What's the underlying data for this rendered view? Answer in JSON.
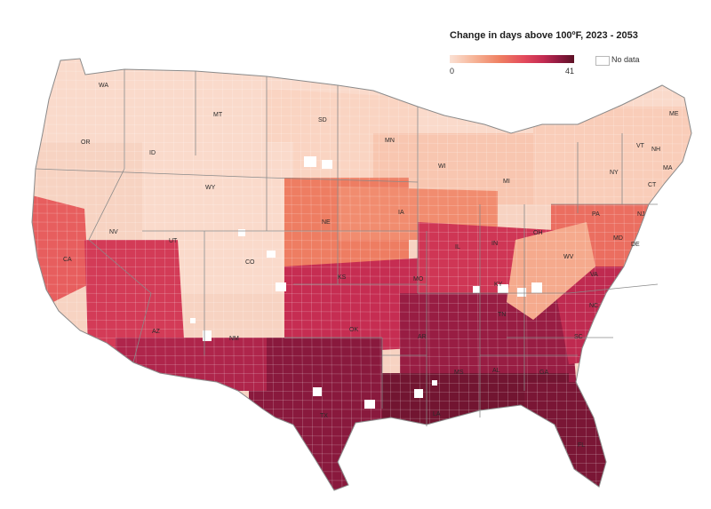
{
  "legend": {
    "title": "Change in days above 100ºF, 2023 - 2053",
    "min_label": "0",
    "max_label": "41",
    "no_data_label": "No data",
    "scale": {
      "min": 0,
      "max": 41
    },
    "color_ramp": [
      "#fbe1d4",
      "#f6b396",
      "#ef8062",
      "#e34a5c",
      "#c42c52",
      "#8f1a40",
      "#5c1125"
    ],
    "no_data_color": "#ffffff"
  },
  "colors": {
    "land_base": "#f7d3c2",
    "state_border": "#8a8a8a",
    "water": "#ffffff"
  },
  "state_labels": [
    "WA",
    "MT",
    "OR",
    "ID",
    "SD",
    "MN",
    "WY",
    "WI",
    "NE",
    "IA",
    "NV",
    "UT",
    "CO",
    "CA",
    "KS",
    "MO",
    "IL",
    "IN",
    "OH",
    "MI",
    "PA",
    "NY",
    "VT",
    "NH",
    "ME",
    "MA",
    "CT",
    "NJ",
    "DE",
    "MD",
    "WV",
    "VA",
    "KY",
    "TN",
    "NC",
    "SC",
    "AZ",
    "NM",
    "OK",
    "AR",
    "MS",
    "AL",
    "GA",
    "TX",
    "LA",
    "FL"
  ],
  "regions": [
    {
      "name": "northwest",
      "value": 1
    },
    {
      "name": "northern-plains",
      "value": 2
    },
    {
      "name": "rockies",
      "value": 1
    },
    {
      "name": "great-lakes",
      "value": 4
    },
    {
      "name": "northeast",
      "value": 3
    },
    {
      "name": "central-plains",
      "value": 14
    },
    {
      "name": "corn-belt",
      "value": 12
    },
    {
      "name": "mid-atlantic",
      "value": 16
    },
    {
      "name": "central-valley-ca",
      "value": 18
    },
    {
      "name": "nevada-arizona-desert",
      "value": 24
    },
    {
      "name": "southern-plains",
      "value": 27
    },
    {
      "name": "ohio-valley",
      "value": 25
    },
    {
      "name": "deep-south",
      "value": 33
    },
    {
      "name": "gulf-coast",
      "value": 38
    },
    {
      "name": "texas",
      "value": 35
    },
    {
      "name": "florida",
      "value": 37
    },
    {
      "name": "carolinas-coast",
      "value": 28
    },
    {
      "name": "appalachia",
      "value": 8
    },
    {
      "name": "southwest-border",
      "value": 30
    }
  ]
}
